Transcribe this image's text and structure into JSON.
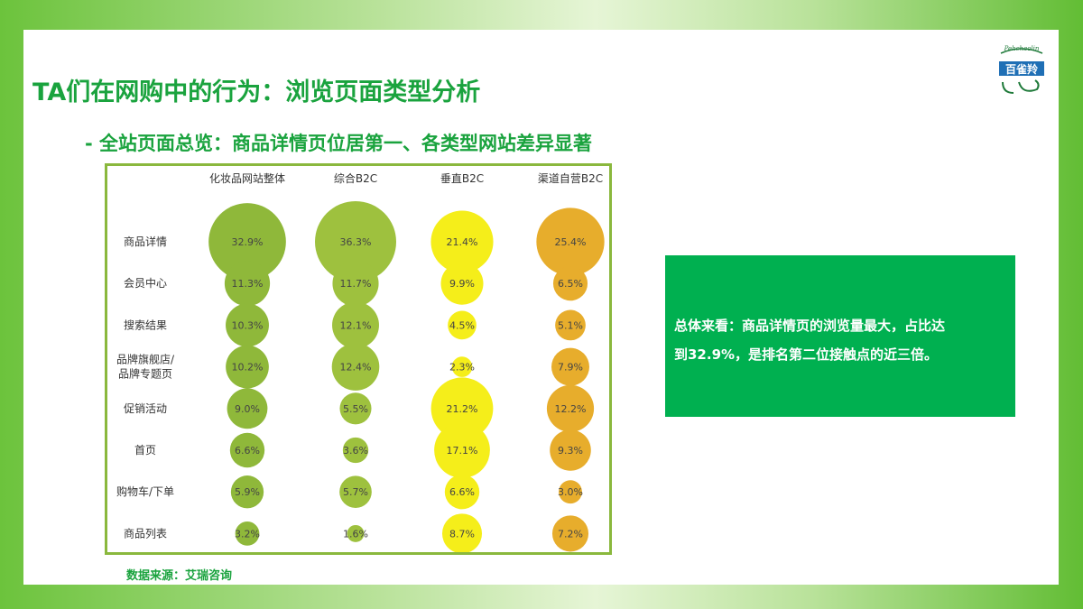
{
  "page": {
    "title": "TA们在网购中的行为：浏览页面类型分析",
    "subtitle": "- 全站页面总览：商品详情页位居第一、各类型网站差异显著",
    "source": "数据来源：艾瑞咨询",
    "summary_line1": "总体来看：商品详情页的浏览量最大，占比达",
    "summary_line2": "到32.9%，是排名第二位接触点的近三倍。",
    "logo_text": "百雀羚",
    "logo_mark": "Pehchaolin"
  },
  "colors": {
    "title": "#1aa33e",
    "summary_bg": "#00b050",
    "frame": "#8ab83d"
  },
  "chart_data": {
    "type": "bubble",
    "unit": "%",
    "columns": [
      "化妆品网站整体",
      "综合B2C",
      "垂直B2C",
      "渠道自营B2C"
    ],
    "column_colors": [
      "#8fb83a",
      "#9ec13e",
      "#f5ee1a",
      "#e7ad2c"
    ],
    "rows": [
      {
        "label": [
          "商品详情"
        ],
        "values": [
          32.9,
          36.3,
          21.4,
          25.4
        ]
      },
      {
        "label": [
          "会员中心"
        ],
        "values": [
          11.3,
          11.7,
          9.9,
          6.5
        ]
      },
      {
        "label": [
          "搜索结果"
        ],
        "values": [
          10.3,
          12.1,
          4.5,
          5.1
        ]
      },
      {
        "label": [
          "品牌旗舰店/",
          "品牌专题页"
        ],
        "values": [
          10.2,
          12.4,
          2.3,
          7.9
        ]
      },
      {
        "label": [
          "促销活动"
        ],
        "values": [
          9.0,
          5.5,
          21.2,
          12.2
        ]
      },
      {
        "label": [
          "首页"
        ],
        "values": [
          6.6,
          3.6,
          17.1,
          9.3
        ]
      },
      {
        "label": [
          "购物车/下单"
        ],
        "values": [
          5.9,
          5.7,
          6.6,
          3.0
        ]
      },
      {
        "label": [
          "商品列表"
        ],
        "values": [
          3.2,
          1.6,
          8.7,
          7.2
        ]
      }
    ],
    "value_labels": [
      [
        "32.9%",
        "36.3%",
        "21.4%",
        "25.4%"
      ],
      [
        "11.3%",
        "11.7%",
        "9.9%",
        "6.5%"
      ],
      [
        "10.3%",
        "12.1%",
        "4.5%",
        "5.1%"
      ],
      [
        "10.2%",
        "12.4%",
        "2.3%",
        "7.9%"
      ],
      [
        "9.0%",
        "5.5%",
        "21.2%",
        "12.2%"
      ],
      [
        "6.6%",
        "3.6%",
        "17.1%",
        "9.3%"
      ],
      [
        "5.9%",
        "5.7%",
        "6.6%",
        "3.0%"
      ],
      [
        "3.2%",
        "1.6%",
        "8.7%",
        "7.2%"
      ]
    ]
  }
}
